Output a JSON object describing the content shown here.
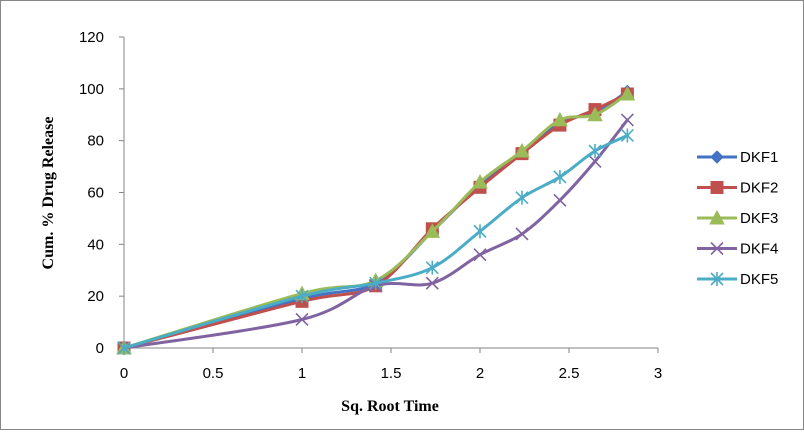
{
  "chart_data": {
    "type": "line",
    "title": "",
    "xlabel": "Sq. Root Time",
    "ylabel": "Cum. % Drug Release",
    "xlim": [
      0,
      3
    ],
    "ylim": [
      0,
      120
    ],
    "x_ticks": [
      "0",
      "0.5",
      "1",
      "1.5",
      "2",
      "2.5",
      "3"
    ],
    "y_ticks": [
      "0",
      "20",
      "40",
      "60",
      "80",
      "100",
      "120"
    ],
    "grid": false,
    "legend_position": "right",
    "x": [
      0,
      1,
      1.414,
      1.732,
      2,
      2.236,
      2.449,
      2.646,
      2.828
    ],
    "series": [
      {
        "name": "DKF1",
        "color": "#4472C4",
        "marker": "diamond",
        "values": [
          0,
          19,
          25,
          45,
          63,
          75,
          87,
          91,
          99
        ]
      },
      {
        "name": "DKF2",
        "color": "#C0504D",
        "marker": "square",
        "values": [
          0,
          18,
          24,
          46,
          62,
          75,
          86,
          92,
          98
        ]
      },
      {
        "name": "DKF3",
        "color": "#9BBB59",
        "marker": "triangle",
        "values": [
          0,
          21,
          26,
          45,
          64,
          76,
          88,
          90,
          98
        ]
      },
      {
        "name": "DKF4",
        "color": "#8064A2",
        "marker": "x",
        "values": [
          0,
          11,
          24,
          25,
          36,
          44,
          57,
          72,
          88
        ]
      },
      {
        "name": "DKF5",
        "color": "#4BACC6",
        "marker": "star",
        "values": [
          0,
          20,
          25,
          31,
          45,
          58,
          66,
          76,
          82
        ]
      }
    ]
  }
}
